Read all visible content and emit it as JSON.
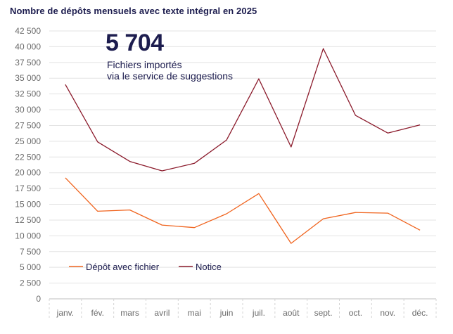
{
  "chart_data": {
    "type": "line",
    "title": "Nombre de dépôts mensuels avec texte intégral en 2025",
    "categories": [
      "janv.",
      "fév.",
      "mars",
      "avril",
      "mai",
      "juin",
      "juil.",
      "août",
      "sept.",
      "oct.",
      "nov.",
      "déc."
    ],
    "ylim": [
      0,
      42500
    ],
    "yticks": [
      0,
      2500,
      5000,
      7500,
      10000,
      12500,
      15000,
      17500,
      20000,
      22500,
      25000,
      27500,
      30000,
      32500,
      35000,
      37500,
      40000,
      42500
    ],
    "ytick_labels": [
      "0",
      "2 500",
      "5 000",
      "7 500",
      "10 000",
      "12 500",
      "15 000",
      "17 500",
      "20 000",
      "22 500",
      "25 000",
      "27 500",
      "30 000",
      "32 500",
      "35 000",
      "37 500",
      "40 000",
      "42 500"
    ],
    "grid": true,
    "legend_position": "bottom-left",
    "series": [
      {
        "name": "Dépôt avec fichier",
        "color": "#f0641e",
        "values": [
          19200,
          13900,
          14100,
          11700,
          11300,
          13500,
          16700,
          8800,
          12700,
          13700,
          13600,
          10900
        ]
      },
      {
        "name": "Notice",
        "color": "#8b1a2b",
        "values": [
          34000,
          24900,
          21800,
          20300,
          21500,
          25200,
          34900,
          24100,
          39700,
          29100,
          26300,
          27600
        ]
      }
    ],
    "annotation": {
      "value": "5 704",
      "line1": "Fichiers importés",
      "line2": "via le service de suggestions"
    }
  }
}
